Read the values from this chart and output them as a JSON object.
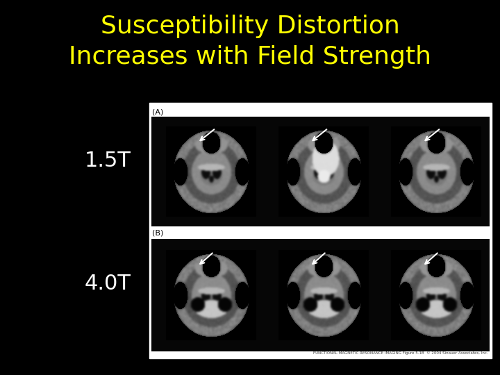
{
  "background_color": "#000000",
  "title_line1": "Susceptibility Distortion",
  "title_line2": "Increases with Field Strength",
  "title_color": "#FFFF00",
  "title_fontsize": 26,
  "label_15T": "1.5T",
  "label_40T": "4.0T",
  "label_color": "#FFFFFF",
  "label_fontsize": 22,
  "panel_A_label": "(A)",
  "panel_B_label": "(B)",
  "footer_text": "FUNCTIONAL MAGNETIC RESONANCE IMAGING Figure 5.1B  © 2004 Sinauer Associates, Inc."
}
